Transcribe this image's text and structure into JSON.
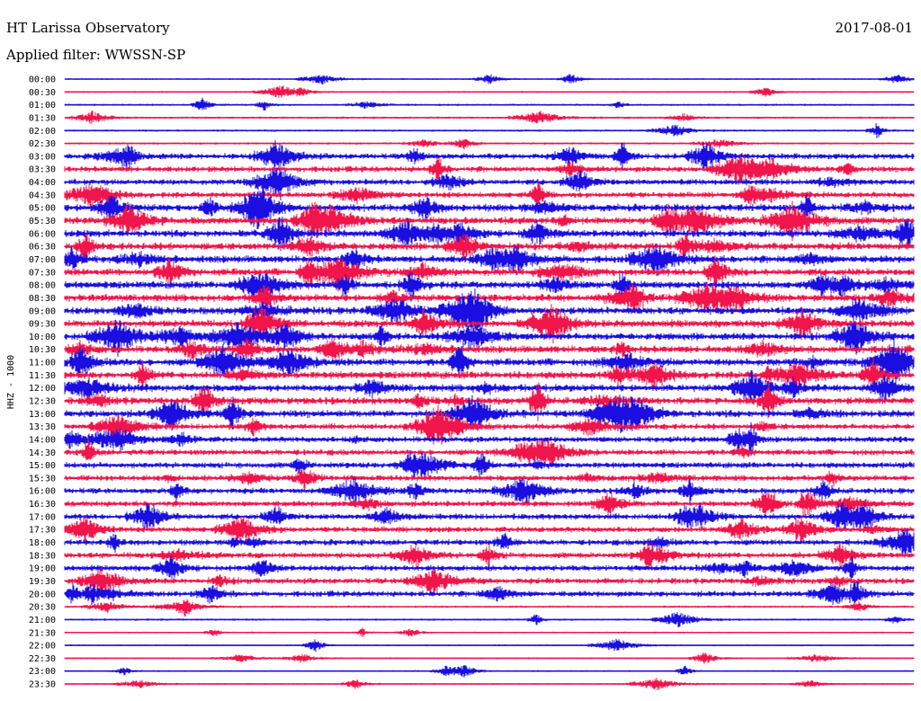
{
  "header": {
    "title": "HT Larissa Observatory",
    "date": "2017-08-01",
    "filter": "Applied filter: WWSSN-SP"
  },
  "chart_data": {
    "type": "line",
    "ylabel": "HHZ - 1000",
    "tick_labels": [
      "00:00",
      "00:30",
      "01:00",
      "01:30",
      "02:00",
      "02:30",
      "03:00",
      "03:30",
      "04:00",
      "04:30",
      "05:00",
      "05:30",
      "06:00",
      "06:30",
      "07:00",
      "07:30",
      "08:00",
      "08:30",
      "09:00",
      "09:30",
      "10:00",
      "10:30",
      "11:00",
      "11:30",
      "12:00",
      "12:30",
      "13:00",
      "13:30",
      "14:00",
      "14:30",
      "15:00",
      "15:30",
      "16:00",
      "16:30",
      "17:00",
      "17:30",
      "18:00",
      "18:30",
      "19:00",
      "19:30",
      "20:00",
      "20:30",
      "21:00",
      "21:30",
      "22:00",
      "22:30",
      "23:00",
      "23:30"
    ],
    "colors": [
      "#1a0fe0",
      "#f0154a"
    ],
    "grid": false,
    "legend": "none"
  }
}
